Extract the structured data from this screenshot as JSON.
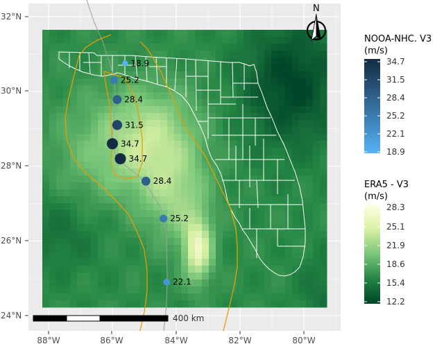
{
  "map": {
    "lat_ticks": [
      "32°N",
      "30°N",
      "28°N",
      "26°N",
      "24°N"
    ],
    "lon_ticks": [
      "88°W",
      "86°W",
      "84°W",
      "82°W",
      "80°W"
    ],
    "north_label": "N",
    "scalebar_label": "400 km"
  },
  "track_points": [
    {
      "label": "18.9",
      "lon": -85.6,
      "lat": 30.75,
      "value": 18.9
    },
    {
      "label": "25.2",
      "lon": -85.95,
      "lat": 30.3,
      "value": 25.2
    },
    {
      "label": "28.4",
      "lon": -85.85,
      "lat": 29.78,
      "value": 28.4
    },
    {
      "label": "31.5",
      "lon": -85.85,
      "lat": 29.1,
      "value": 31.5
    },
    {
      "label": "34.7",
      "lon": -86.0,
      "lat": 28.6,
      "value": 34.7
    },
    {
      "label": "34.7",
      "lon": -85.75,
      "lat": 28.2,
      "value": 34.7
    },
    {
      "label": "28.4",
      "lon": -84.95,
      "lat": 27.6,
      "value": 28.4
    },
    {
      "label": "25.2",
      "lon": -84.4,
      "lat": 26.6,
      "value": 25.2
    },
    {
      "label": "22.1",
      "lon": -84.3,
      "lat": 24.9,
      "value": 22.1
    }
  ],
  "legend_nhc": {
    "title_line1": "NOOA-NHC. V3",
    "title_line2": "(m/s)",
    "ticks": [
      "34.7",
      "31.5",
      "28.4",
      "25.2",
      "22.1",
      "18.9"
    ],
    "color_low": "#56b1f7",
    "color_high": "#132b43"
  },
  "legend_era5": {
    "title_line1": "ERA5 - V3",
    "title_line2": "(m/s)",
    "ticks": [
      "28.3",
      "25.1",
      "21.9",
      "18.6",
      "15.4",
      "12.2"
    ],
    "color_low": "#004529",
    "color_high": "#ffffe5"
  }
}
